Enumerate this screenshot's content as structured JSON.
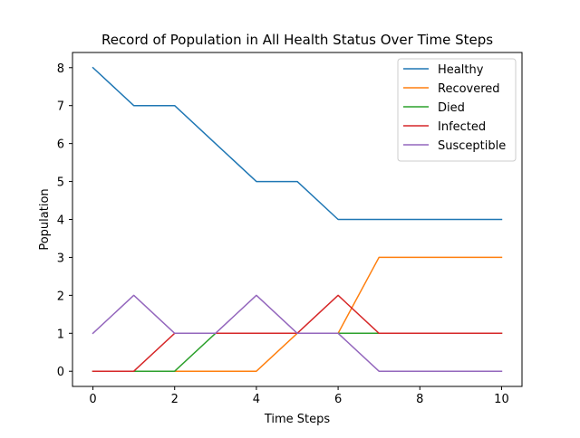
{
  "chart_data": {
    "type": "line",
    "title": "Record of Population in All Health Status Over Time Steps",
    "xlabel": "Time Steps",
    "ylabel": "Population",
    "x": [
      0,
      1,
      2,
      3,
      4,
      5,
      6,
      7,
      8,
      9,
      10
    ],
    "xlim": [
      -0.5,
      10.5
    ],
    "ylim": [
      -0.4,
      8.4
    ],
    "xticks": [
      0,
      2,
      4,
      6,
      8,
      10
    ],
    "yticks": [
      0,
      1,
      2,
      3,
      4,
      5,
      6,
      7,
      8
    ],
    "grid": false,
    "legend_position": "top-right",
    "series": [
      {
        "name": "Healthy",
        "color": "#1f77b4",
        "values": [
          8,
          7,
          7,
          6,
          5,
          5,
          4,
          4,
          4,
          4,
          4
        ]
      },
      {
        "name": "Recovered",
        "color": "#ff7f0e",
        "values": [
          0,
          0,
          0,
          0,
          0,
          1,
          1,
          3,
          3,
          3,
          3
        ]
      },
      {
        "name": "Died",
        "color": "#2ca02c",
        "values": [
          0,
          0,
          0,
          1,
          1,
          1,
          1,
          1,
          1,
          1,
          1
        ]
      },
      {
        "name": "Infected",
        "color": "#d62728",
        "values": [
          0,
          0,
          1,
          1,
          1,
          1,
          2,
          1,
          1,
          1,
          1
        ]
      },
      {
        "name": "Susceptible",
        "color": "#9467bd",
        "values": [
          1,
          2,
          1,
          1,
          2,
          1,
          1,
          0,
          0,
          0,
          0
        ]
      }
    ]
  }
}
